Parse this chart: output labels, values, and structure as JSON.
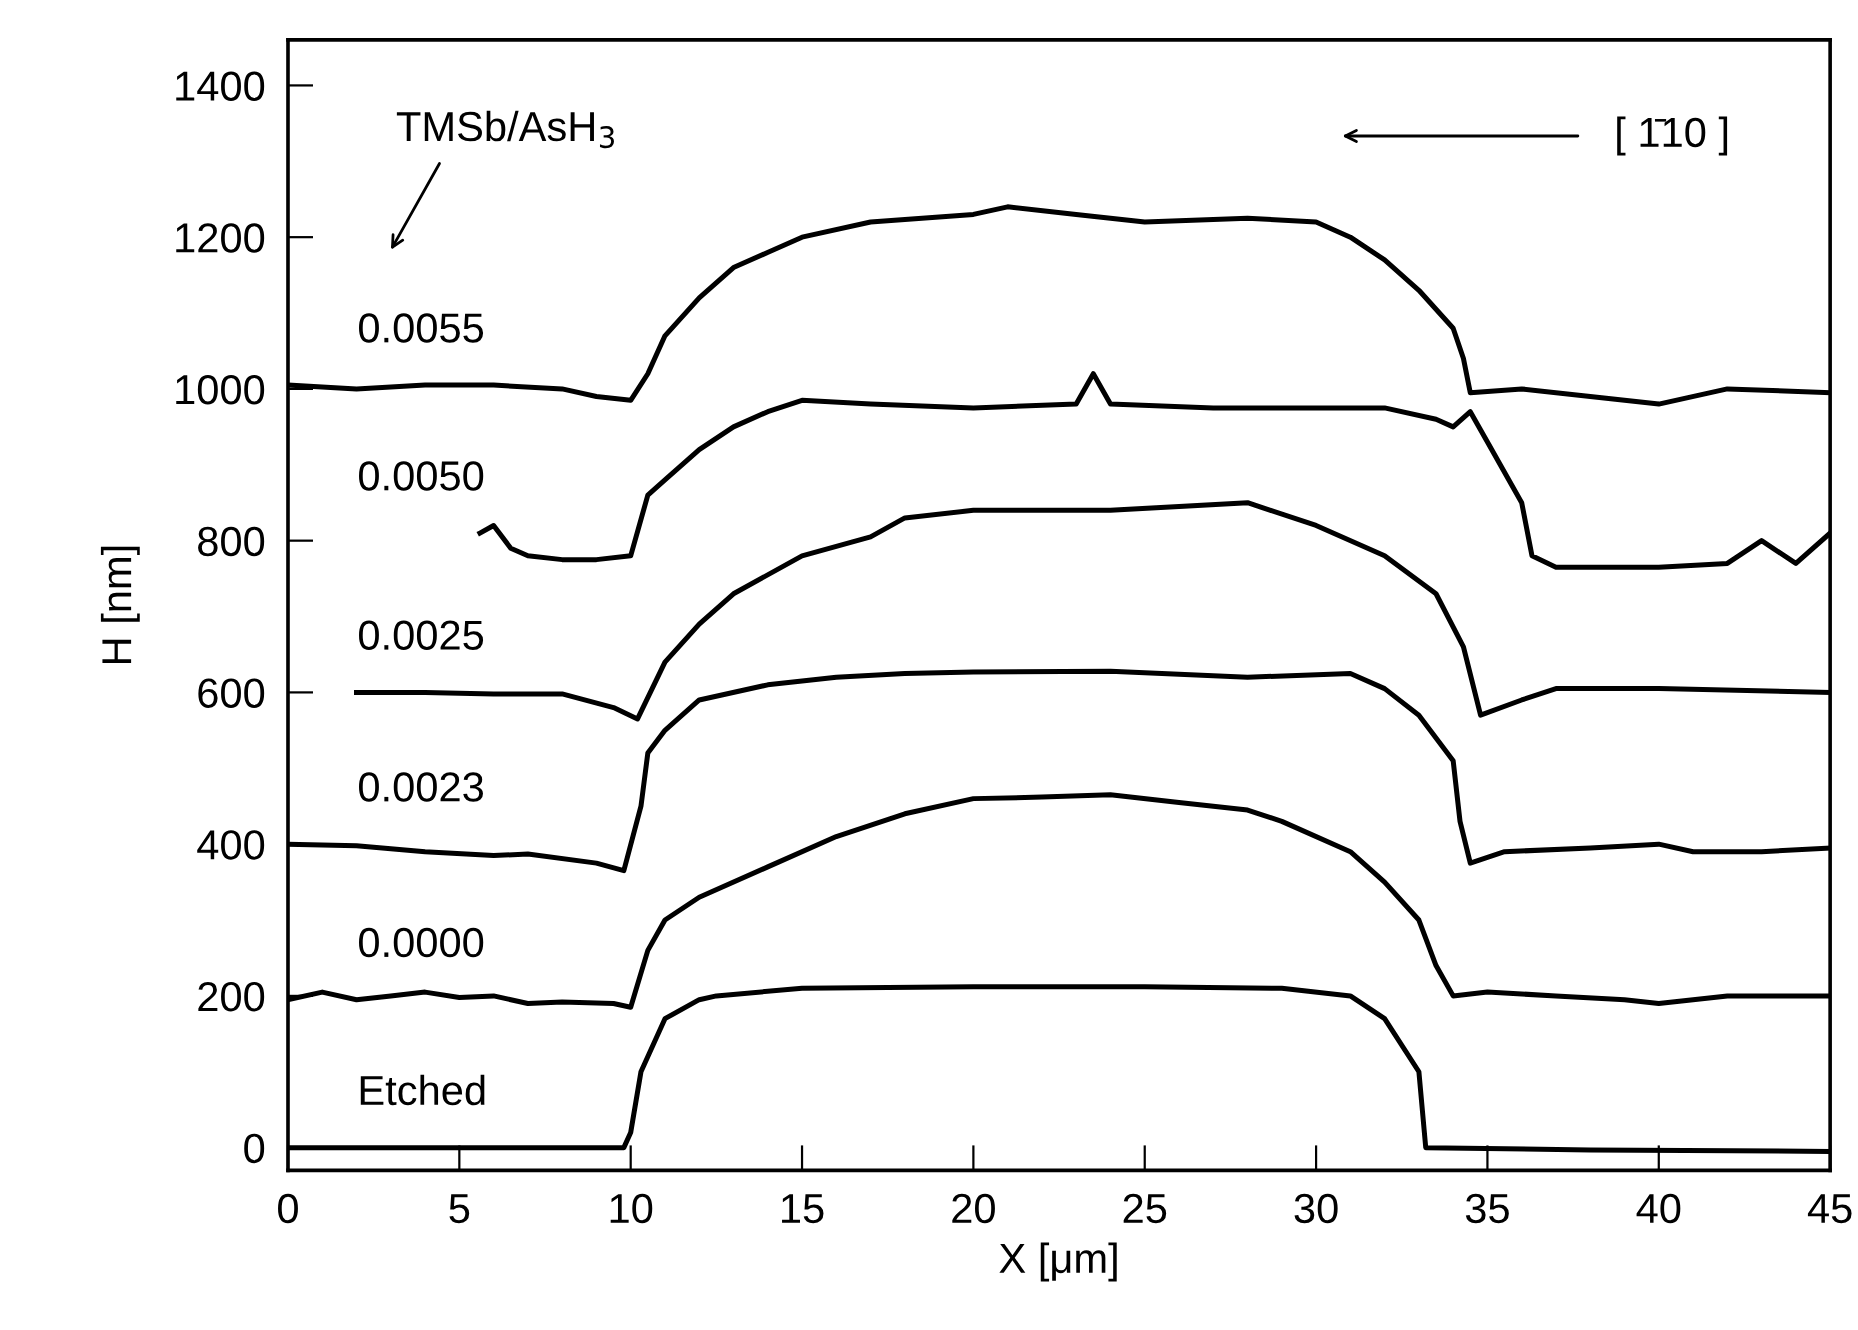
{
  "chart_data": {
    "type": "line",
    "xlabel": "X [μm]",
    "ylabel": "H [nm]",
    "xlim": [
      0,
      45
    ],
    "xticks": [
      0,
      5,
      10,
      15,
      20,
      25,
      30,
      35,
      40,
      45
    ],
    "ylim": [
      -30,
      1460
    ],
    "yticks": [
      0,
      200,
      400,
      600,
      800,
      1000,
      1200,
      1400
    ],
    "grid": false,
    "marker": "none",
    "line_style": "solid",
    "annotations": [
      "TMSb/AsH$_{3}$",
      "[ 1̄10 ]"
    ],
    "series": [
      {
        "name": "Etched",
        "color": "#000000",
        "x": [
          0,
          5,
          9.8,
          10,
          10.3,
          11,
          12,
          12.5,
          15,
          20,
          25,
          29,
          31,
          32,
          33,
          33.2,
          38,
          45
        ],
        "values": [
          0,
          0,
          0,
          20,
          100,
          170,
          195,
          200,
          210,
          212,
          212,
          210,
          200,
          170,
          100,
          0,
          -3,
          -5
        ]
      },
      {
        "name": "0.0000",
        "color": "#000000",
        "x": [
          0,
          1,
          2,
          3,
          4,
          5,
          6,
          7,
          8,
          9.5,
          10,
          10.5,
          11,
          12,
          14,
          16,
          18,
          20,
          22,
          24,
          26,
          28,
          29,
          31,
          32,
          33,
          33.5,
          34,
          35,
          37,
          39,
          40,
          42,
          45
        ],
        "values": [
          195,
          205,
          195,
          200,
          205,
          198,
          200,
          190,
          192,
          190,
          185,
          260,
          300,
          330,
          370,
          410,
          440,
          460,
          462,
          465,
          455,
          445,
          430,
          390,
          350,
          300,
          240,
          200,
          205,
          200,
          195,
          190,
          200,
          200
        ]
      },
      {
        "name": "0.0023",
        "color": "#000000",
        "x": [
          0,
          2,
          4,
          6,
          7,
          9,
          9.8,
          10.3,
          10.5,
          11,
          12,
          14,
          16,
          18,
          20,
          24,
          28,
          31,
          32,
          33,
          34,
          34.2,
          34.5,
          35.5,
          38,
          40,
          41,
          43,
          45
        ],
        "values": [
          400,
          398,
          390,
          385,
          387,
          375,
          365,
          450,
          520,
          550,
          590,
          610,
          620,
          625,
          627,
          628,
          620,
          625,
          605,
          570,
          510,
          430,
          375,
          390,
          395,
          400,
          390,
          390,
          395
        ]
      },
      {
        "name": "0.0025",
        "color": "#000000",
        "x": [
          2,
          4,
          6,
          8,
          9.5,
          10.2,
          11,
          12,
          13,
          15,
          17,
          18,
          20,
          24,
          28,
          30,
          32,
          33.5,
          34.3,
          34.8,
          36,
          37,
          40,
          45
        ],
        "values": [
          600,
          600,
          598,
          598,
          580,
          565,
          640,
          690,
          730,
          780,
          805,
          830,
          840,
          840,
          850,
          820,
          780,
          730,
          660,
          570,
          590,
          605,
          605,
          600
        ]
      },
      {
        "name": "0.0050",
        "color": "#000000",
        "x": [
          5.6,
          6,
          6.5,
          7,
          8,
          9,
          10,
          10.5,
          11,
          12,
          13,
          14,
          15,
          17,
          20,
          23,
          23.5,
          24,
          27,
          30,
          32,
          33.5,
          34,
          34.5,
          35,
          36,
          36.3,
          37,
          40,
          42,
          43,
          44,
          45
        ],
        "values": [
          810,
          820,
          790,
          780,
          775,
          775,
          780,
          860,
          880,
          920,
          950,
          970,
          985,
          980,
          975,
          980,
          1020,
          980,
          975,
          975,
          975,
          960,
          950,
          970,
          930,
          850,
          780,
          765,
          765,
          770,
          800,
          770,
          810
        ]
      },
      {
        "name": "0.0055",
        "color": "#000000",
        "x": [
          0,
          2,
          4,
          6,
          8,
          9,
          10,
          10.5,
          11,
          12,
          13,
          15,
          17,
          20,
          21,
          23,
          25,
          28,
          30,
          31,
          32,
          33,
          34,
          34.3,
          34.5,
          36,
          38,
          40,
          42,
          45
        ],
        "values": [
          1005,
          1000,
          1005,
          1005,
          1000,
          990,
          985,
          1020,
          1070,
          1120,
          1160,
          1200,
          1220,
          1230,
          1240,
          1230,
          1220,
          1225,
          1220,
          1200,
          1170,
          1130,
          1080,
          1040,
          995,
          1000,
          990,
          980,
          1000,
          995
        ]
      }
    ]
  }
}
